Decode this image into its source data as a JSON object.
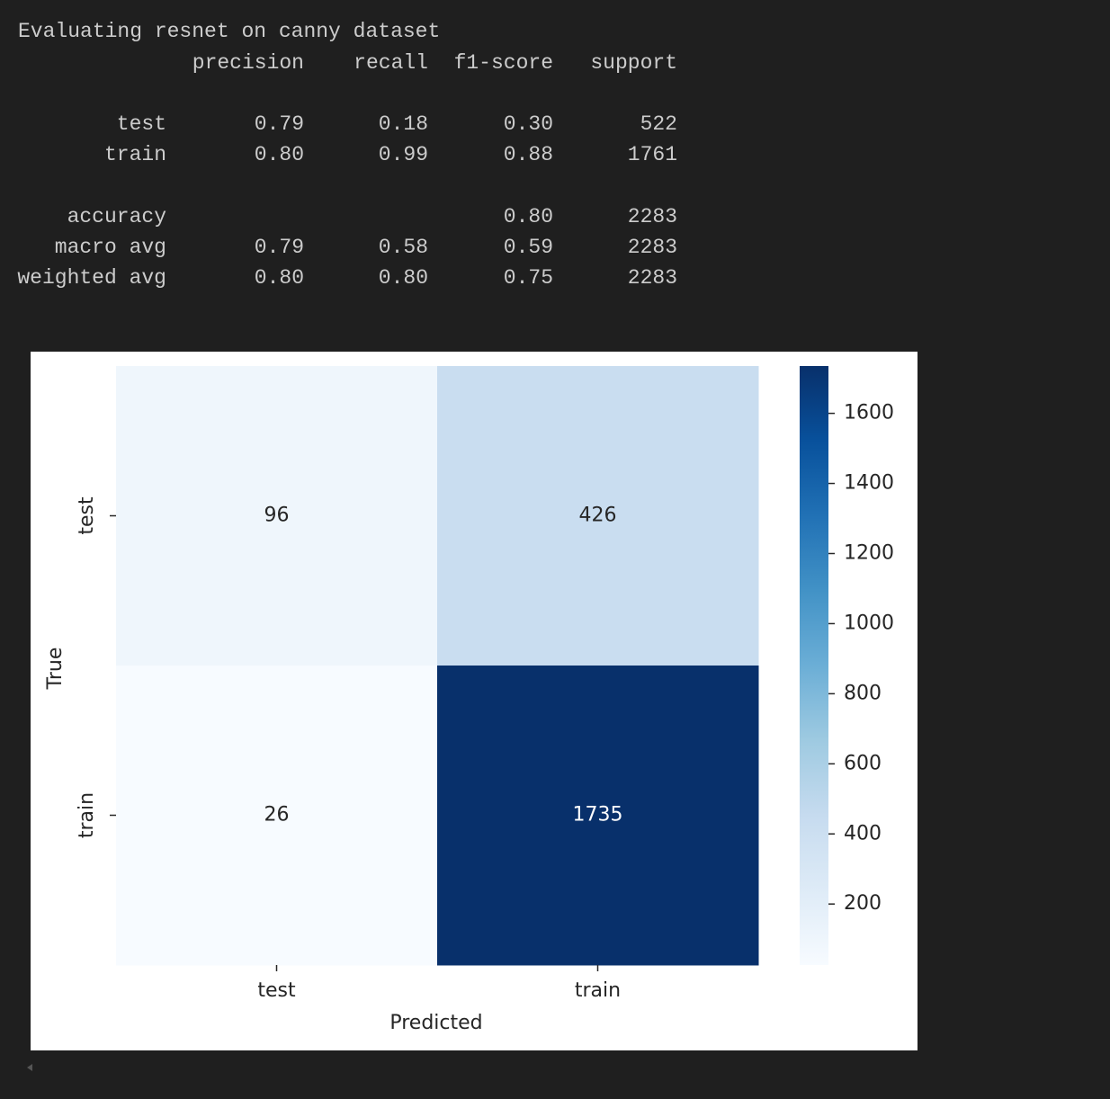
{
  "report": {
    "title": "Evaluating resnet on canny dataset",
    "columns": [
      "precision",
      "recall",
      "f1-score",
      "support"
    ],
    "rows": [
      {
        "label": "test",
        "cells": [
          "0.79",
          "0.18",
          "0.30",
          "522"
        ]
      },
      {
        "label": "train",
        "cells": [
          "0.80",
          "0.99",
          "0.88",
          "1761"
        ]
      },
      {
        "label": "accuracy",
        "cells": [
          null,
          null,
          "0.80",
          "2283"
        ]
      },
      {
        "label": "macro avg",
        "cells": [
          "0.79",
          "0.58",
          "0.59",
          "2283"
        ]
      },
      {
        "label": "weighted avg",
        "cells": [
          "0.80",
          "0.80",
          "0.75",
          "2283"
        ]
      }
    ]
  },
  "chart_data": {
    "type": "heatmap",
    "x_label": "Predicted",
    "y_label": "True",
    "x_categories": [
      "test",
      "train"
    ],
    "y_categories": [
      "test",
      "train"
    ],
    "values": [
      [
        96,
        426
      ],
      [
        26,
        1735
      ]
    ],
    "cmap": "Blues",
    "clim": [
      26,
      1735
    ],
    "cticks": [
      200,
      400,
      600,
      800,
      1000,
      1200,
      1400,
      1600
    ]
  }
}
